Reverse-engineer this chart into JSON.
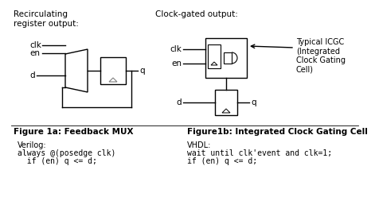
{
  "title_left": "Recirculating\nregister output:",
  "title_right": "Clock-gated output:",
  "fig1a_label": "Figure 1a: Feedback MUX",
  "fig1b_label": "Figure1b: Integrated Clock Gating Cell",
  "verilog_label": "Verilog:",
  "verilog_line1": "always @(posedge clk)",
  "verilog_line2": "  if (en) q <= d;",
  "vhdl_label": "VHDL:",
  "vhdl_line1": "wait until clk'event and clk=1;",
  "vhdl_line2": "if (en) q <= d;",
  "icgc_label": "Typical ICGC\n(Integrated\nClock Gating\nCell)"
}
